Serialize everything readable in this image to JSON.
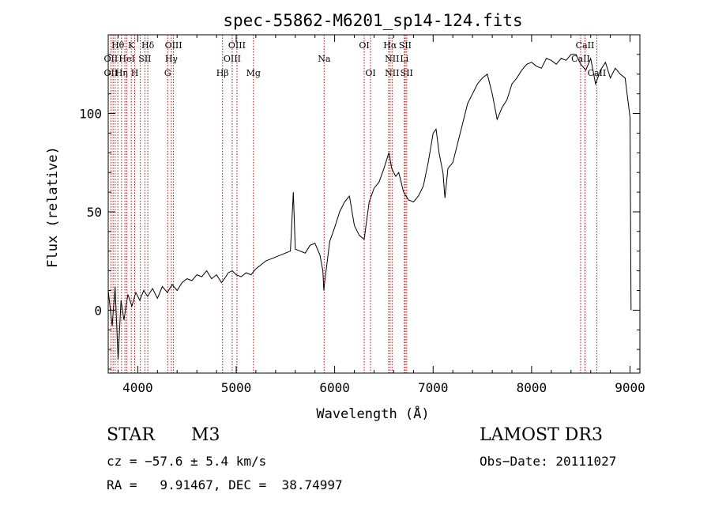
{
  "chart_data": {
    "type": "line",
    "title": "spec-55862-M6201_sp14-124.fits",
    "xlabel": "Wavelength (Å)",
    "ylabel": "Flux (relative)",
    "xlim": [
      3700,
      9100
    ],
    "ylim": [
      -32,
      140
    ],
    "x_ticks": [
      4000,
      5000,
      6000,
      7000,
      8000,
      9000
    ],
    "y_ticks": [
      0,
      50,
      100
    ],
    "grid": false,
    "series": [
      {
        "name": "flux",
        "color": "#000000",
        "points": [
          [
            3700,
            10
          ],
          [
            3740,
            -8
          ],
          [
            3770,
            12
          ],
          [
            3800,
            -25
          ],
          [
            3830,
            5
          ],
          [
            3860,
            -5
          ],
          [
            3900,
            8
          ],
          [
            3940,
            2
          ],
          [
            3980,
            9
          ],
          [
            4020,
            5
          ],
          [
            4060,
            10
          ],
          [
            4100,
            7
          ],
          [
            4150,
            11
          ],
          [
            4200,
            6
          ],
          [
            4250,
            12
          ],
          [
            4300,
            9
          ],
          [
            4350,
            13
          ],
          [
            4400,
            10
          ],
          [
            4450,
            14
          ],
          [
            4500,
            16
          ],
          [
            4550,
            15
          ],
          [
            4600,
            18
          ],
          [
            4650,
            17
          ],
          [
            4700,
            20
          ],
          [
            4750,
            16
          ],
          [
            4800,
            18
          ],
          [
            4850,
            14
          ],
          [
            4880,
            16
          ],
          [
            4920,
            19
          ],
          [
            4960,
            20
          ],
          [
            5000,
            18
          ],
          [
            5050,
            17
          ],
          [
            5100,
            19
          ],
          [
            5150,
            18
          ],
          [
            5200,
            21
          ],
          [
            5250,
            23
          ],
          [
            5300,
            25
          ],
          [
            5350,
            26
          ],
          [
            5400,
            27
          ],
          [
            5450,
            28
          ],
          [
            5500,
            29
          ],
          [
            5550,
            30
          ],
          [
            5580,
            60
          ],
          [
            5600,
            31
          ],
          [
            5650,
            30
          ],
          [
            5700,
            29
          ],
          [
            5750,
            33
          ],
          [
            5800,
            34
          ],
          [
            5850,
            28
          ],
          [
            5880,
            20
          ],
          [
            5890,
            10
          ],
          [
            5900,
            15
          ],
          [
            5950,
            35
          ],
          [
            6000,
            42
          ],
          [
            6050,
            50
          ],
          [
            6100,
            55
          ],
          [
            6150,
            58
          ],
          [
            6200,
            43
          ],
          [
            6250,
            38
          ],
          [
            6300,
            36
          ],
          [
            6350,
            55
          ],
          [
            6400,
            62
          ],
          [
            6450,
            65
          ],
          [
            6500,
            72
          ],
          [
            6550,
            80
          ],
          [
            6580,
            72
          ],
          [
            6620,
            68
          ],
          [
            6650,
            70
          ],
          [
            6700,
            60
          ],
          [
            6750,
            56
          ],
          [
            6800,
            55
          ],
          [
            6850,
            58
          ],
          [
            6900,
            63
          ],
          [
            6950,
            75
          ],
          [
            7000,
            90
          ],
          [
            7030,
            92
          ],
          [
            7060,
            80
          ],
          [
            7080,
            75
          ],
          [
            7100,
            70
          ],
          [
            7120,
            57
          ],
          [
            7150,
            72
          ],
          [
            7200,
            75
          ],
          [
            7250,
            85
          ],
          [
            7300,
            95
          ],
          [
            7350,
            105
          ],
          [
            7400,
            110
          ],
          [
            7450,
            115
          ],
          [
            7500,
            118
          ],
          [
            7550,
            120
          ],
          [
            7600,
            110
          ],
          [
            7650,
            97
          ],
          [
            7700,
            103
          ],
          [
            7750,
            107
          ],
          [
            7800,
            115
          ],
          [
            7850,
            118
          ],
          [
            7900,
            122
          ],
          [
            7950,
            125
          ],
          [
            8000,
            126
          ],
          [
            8050,
            124
          ],
          [
            8100,
            123
          ],
          [
            8150,
            128
          ],
          [
            8200,
            127
          ],
          [
            8250,
            125
          ],
          [
            8300,
            128
          ],
          [
            8350,
            127
          ],
          [
            8400,
            130
          ],
          [
            8450,
            130
          ],
          [
            8500,
            125
          ],
          [
            8550,
            122
          ],
          [
            8600,
            128
          ],
          [
            8650,
            115
          ],
          [
            8700,
            122
          ],
          [
            8750,
            126
          ],
          [
            8800,
            118
          ],
          [
            8850,
            123
          ],
          [
            8900,
            120
          ],
          [
            8950,
            118
          ],
          [
            9000,
            98
          ],
          [
            9010,
            0
          ]
        ]
      }
    ],
    "lines": {
      "color": "#cc0000",
      "wavelengths": [
        3727,
        3750,
        3771,
        3798,
        3835,
        3869,
        3889,
        3934,
        3969,
        4026,
        4072,
        4102,
        4304,
        4341,
        4363,
        4861,
        4959,
        5007,
        5175,
        5893,
        6300,
        6364,
        6548,
        6563,
        6583,
        6707,
        6716,
        6731,
        8498,
        8542,
        8662
      ],
      "labels": [
        {
          "text": "Hθ",
          "x": 3798,
          "row": 0
        },
        {
          "text": "K",
          "x": 3934,
          "row": 0
        },
        {
          "text": "Hδ",
          "x": 4102,
          "row": 0
        },
        {
          "text": "OIII",
          "x": 4363,
          "row": 0
        },
        {
          "text": "OIII",
          "x": 5007,
          "row": 0
        },
        {
          "text": "OI",
          "x": 6300,
          "row": 0
        },
        {
          "text": "Hα",
          "x": 6563,
          "row": 0
        },
        {
          "text": "SII",
          "x": 6716,
          "row": 0
        },
        {
          "text": "CaII",
          "x": 8542,
          "row": 0
        },
        {
          "text": "OII",
          "x": 3727,
          "row": 1
        },
        {
          "text": "HeI",
          "x": 3889,
          "row": 1
        },
        {
          "text": "SII",
          "x": 4072,
          "row": 1
        },
        {
          "text": "Hγ",
          "x": 4341,
          "row": 1
        },
        {
          "text": "OIII",
          "x": 4959,
          "row": 1
        },
        {
          "text": "Na",
          "x": 5893,
          "row": 1
        },
        {
          "text": "NII",
          "x": 6583,
          "row": 1
        },
        {
          "text": "Li",
          "x": 6707,
          "row": 1
        },
        {
          "text": "CaII",
          "x": 8498,
          "row": 1
        },
        {
          "text": "OII",
          "x": 3727,
          "row": 2
        },
        {
          "text": "Hη",
          "x": 3835,
          "row": 2
        },
        {
          "text": "H",
          "x": 3969,
          "row": 2
        },
        {
          "text": "G",
          "x": 4304,
          "row": 2
        },
        {
          "text": "Hβ",
          "x": 4861,
          "row": 2
        },
        {
          "text": "Mg",
          "x": 5175,
          "row": 2
        },
        {
          "text": "OI",
          "x": 6364,
          "row": 2
        },
        {
          "text": "NII",
          "x": 6583,
          "row": 2
        },
        {
          "text": "SII",
          "x": 6731,
          "row": 2
        },
        {
          "text": "CaII",
          "x": 8662,
          "row": 2
        }
      ]
    }
  },
  "info": {
    "class": "STAR",
    "subclass": "M3",
    "survey": "LAMOST DR3",
    "cz": "cz = −57.6 ± 5.4 km/s",
    "obs_date": "Obs−Date: 20111027",
    "coords": "RA =   9.91467, DEC =  38.74997"
  }
}
